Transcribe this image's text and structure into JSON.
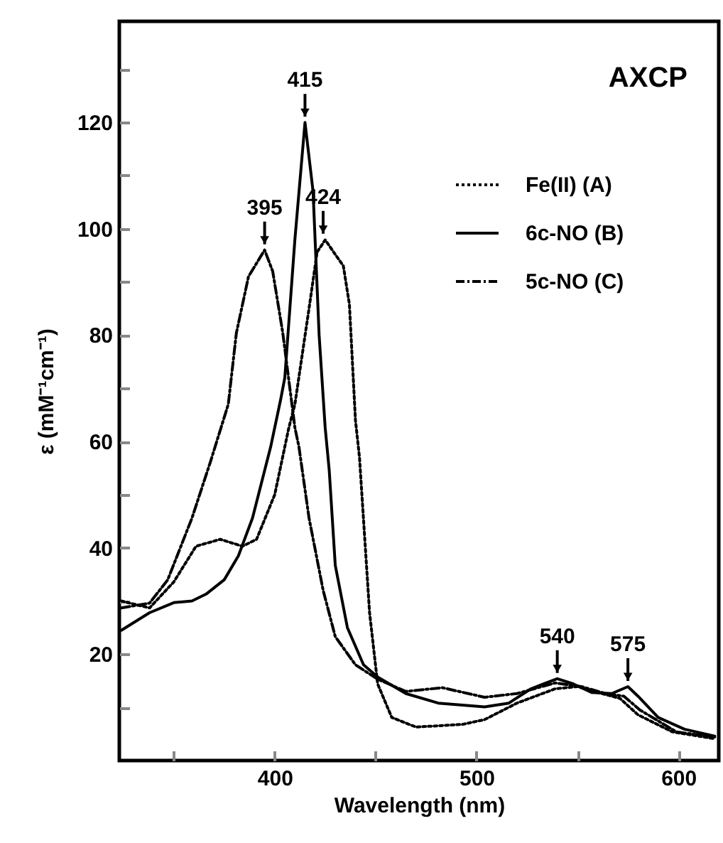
{
  "chart_data": {
    "type": "line",
    "title": "AXCP",
    "xlabel": "Wavelength (nm)",
    "ylabel": "ε (mM⁻¹cm⁻¹)",
    "xlim": [
      323,
      620
    ],
    "xticks": [
      {
        "value": 350,
        "label": null
      },
      400,
      {
        "value": 450,
        "label": null
      },
      500,
      {
        "value": 550,
        "label": null
      },
      600
    ],
    "ylim": [
      0,
      139
    ],
    "yticks": [
      {
        "value": 10,
        "label": null
      },
      20,
      {
        "value": 30,
        "label": null
      },
      40,
      {
        "value": 50,
        "label": null
      },
      60,
      {
        "value": 70,
        "label": null
      },
      80,
      {
        "value": 90,
        "label": null
      },
      100,
      {
        "value": 110,
        "label": null
      },
      120,
      {
        "value": 130,
        "label": null
      }
    ],
    "grid": false,
    "legend": "top right",
    "marker": "none",
    "series": [
      {
        "name": "Fe(II)   (A)",
        "color": "#000000",
        "line_style": "dotted",
        "x": [
          324,
          338,
          350,
          361,
          373,
          384,
          391,
          400,
          407,
          410,
          417,
          421,
          425,
          434,
          437,
          440,
          442,
          447,
          451,
          458,
          470,
          493,
          504,
          520,
          539,
          550,
          562,
          571,
          580,
          597,
          618
        ],
        "values": [
          30,
          28.7,
          33.6,
          40.3,
          41.6,
          40.3,
          41.6,
          50,
          62.6,
          67,
          85,
          95.6,
          97.9,
          93,
          85.8,
          64,
          57,
          27.8,
          14.4,
          8.1,
          6.3,
          6.8,
          7.7,
          10.8,
          13.5,
          13.9,
          12.6,
          11.7,
          8.6,
          5.4,
          4.1
        ]
      },
      {
        "name": "6c-NO   (B)",
        "color": "#000000",
        "line_style": "solid",
        "x": [
          324,
          338,
          350,
          359,
          366,
          375,
          382,
          389,
          398,
          403,
          405,
          410,
          415,
          419,
          422,
          425,
          427,
          430,
          436,
          444,
          451,
          465,
          481,
          504,
          516,
          527,
          540,
          548,
          557,
          567,
          575,
          580,
          590,
          603,
          618
        ],
        "values": [
          24.5,
          27.8,
          29.7,
          30,
          31.3,
          34,
          38.5,
          45.6,
          59,
          68,
          72,
          98,
          120,
          107,
          80,
          62.6,
          54.6,
          36.7,
          25,
          18,
          15.7,
          12.6,
          10.8,
          10.1,
          10.8,
          13.5,
          15.4,
          14.4,
          12.8,
          12.6,
          13.9,
          12.1,
          8.1,
          5.9,
          4.6
        ]
      },
      {
        "name": "5c-NO   (C)",
        "color": "#000000",
        "line_style": "dashed",
        "x": [
          324,
          338,
          347,
          359,
          368,
          377,
          381,
          387,
          395,
          399,
          404,
          410,
          412,
          417,
          424,
          430,
          440,
          451,
          465,
          483,
          504,
          520,
          539,
          552,
          564,
          573,
          581,
          599,
          618
        ],
        "values": [
          28.7,
          29.6,
          34,
          45.6,
          56,
          67,
          80.4,
          91,
          96,
          92,
          80.4,
          62.6,
          59,
          45.6,
          32,
          23.3,
          18,
          15.3,
          13,
          13.7,
          11.9,
          12.6,
          14.6,
          13.9,
          12.6,
          12.1,
          9.5,
          5.4,
          4.4
        ]
      }
    ],
    "annotations": [
      {
        "text": "415",
        "x": 415,
        "y": 120
      },
      {
        "text": "395",
        "x": 395,
        "y": 96
      },
      {
        "text": "424",
        "x": 424,
        "y": 98
      },
      {
        "text": "540",
        "x": 540,
        "y": 15.4
      },
      {
        "text": "575",
        "x": 575,
        "y": 13.9
      }
    ]
  }
}
